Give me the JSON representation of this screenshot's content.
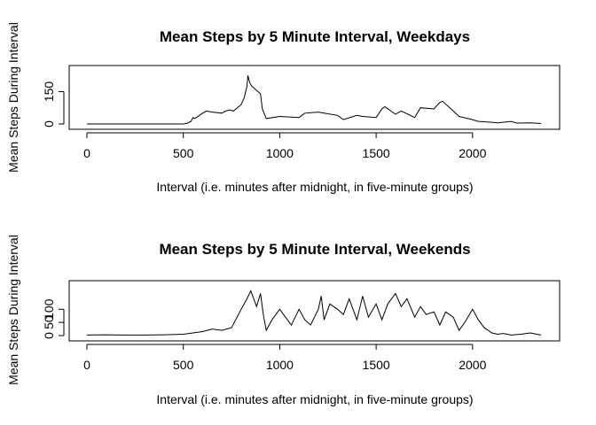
{
  "chart_data": [
    {
      "type": "line",
      "title": "Mean Steps by 5 Minute Interval, Weekdays",
      "xlabel": "Interval (i.e. minutes after midnight, in five-minute groups)",
      "ylabel": "Mean Steps During Interval",
      "xlim": [
        0,
        2355
      ],
      "ylim": [
        0,
        230
      ],
      "xticks": [
        0,
        500,
        1000,
        1500,
        2000
      ],
      "yticks": [
        0,
        150
      ],
      "grid": false,
      "legend": "none",
      "x": [
        0,
        450,
        500,
        520,
        540,
        550,
        560,
        600,
        620,
        650,
        700,
        720,
        740,
        760,
        800,
        815,
        830,
        835,
        845,
        855,
        900,
        910,
        930,
        1000,
        1100,
        1130,
        1200,
        1230,
        1300,
        1330,
        1400,
        1430,
        1500,
        1530,
        1545,
        1600,
        1630,
        1700,
        1730,
        1800,
        1830,
        1845,
        1900,
        1930,
        2000,
        2030,
        2100,
        2130,
        2200,
        2230,
        2300,
        2355
      ],
      "y": [
        0,
        0,
        0,
        3,
        12,
        30,
        25,
        50,
        60,
        55,
        50,
        60,
        65,
        60,
        90,
        120,
        175,
        225,
        190,
        175,
        140,
        70,
        25,
        35,
        30,
        50,
        55,
        50,
        40,
        20,
        40,
        35,
        30,
        70,
        80,
        45,
        60,
        30,
        75,
        70,
        100,
        105,
        60,
        35,
        20,
        12,
        8,
        5,
        12,
        4,
        5,
        2
      ]
    },
    {
      "type": "line",
      "title": "Mean Steps by 5 Minute Interval, Weekends",
      "xlabel": "Interval (i.e. minutes after midnight, in five-minute groups)",
      "ylabel": "Mean Steps During Interval",
      "xlim": [
        0,
        2355
      ],
      "ylim": [
        0,
        175
      ],
      "xticks": [
        0,
        500,
        1000,
        1500,
        2000
      ],
      "yticks": [
        0,
        50,
        100
      ],
      "grid": false,
      "legend": "none",
      "x": [
        0,
        100,
        200,
        300,
        400,
        500,
        550,
        600,
        650,
        700,
        750,
        800,
        830,
        850,
        880,
        900,
        915,
        930,
        960,
        1000,
        1030,
        1060,
        1100,
        1130,
        1160,
        1200,
        1215,
        1230,
        1260,
        1300,
        1330,
        1360,
        1400,
        1430,
        1460,
        1500,
        1530,
        1560,
        1600,
        1630,
        1660,
        1700,
        1730,
        1760,
        1800,
        1830,
        1860,
        1900,
        1930,
        1960,
        2000,
        2030,
        2060,
        2100,
        2130,
        2160,
        2200,
        2250,
        2300,
        2355
      ],
      "y": [
        2,
        3,
        2,
        2,
        3,
        5,
        10,
        15,
        25,
        20,
        30,
        100,
        140,
        170,
        110,
        160,
        80,
        20,
        60,
        100,
        70,
        40,
        100,
        60,
        40,
        100,
        150,
        60,
        120,
        100,
        80,
        140,
        60,
        150,
        70,
        120,
        60,
        120,
        160,
        110,
        140,
        70,
        110,
        80,
        90,
        40,
        90,
        70,
        20,
        50,
        100,
        60,
        30,
        10,
        5,
        8,
        2,
        5,
        10,
        2
      ]
    }
  ]
}
